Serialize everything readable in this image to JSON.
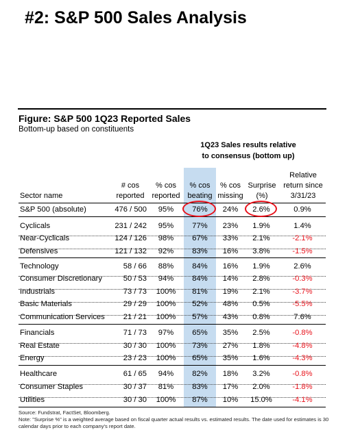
{
  "page_title": "#2: S&P 500 Sales Analysis",
  "figure": {
    "title": "Figure: S&P 500 1Q23 Reported Sales",
    "subtitle": "Bottom-up based on constituents"
  },
  "group_header": {
    "line1": "1Q23 Sales results relative",
    "line2": "to consensus (bottom up)"
  },
  "columns": {
    "sector": "Sector name",
    "cos_1": "# cos",
    "cos_2": "reported",
    "pctrep_1": "% cos",
    "pctrep_2": "reported",
    "beat_1": "% cos",
    "beat_2": "beating",
    "miss_1": "% cos",
    "miss_2": "missing",
    "surp_1": "Surprise",
    "surp_2": "(%)",
    "rel_1": "Relative",
    "rel_2": "return since",
    "rel_3": "3/31/23"
  },
  "rows": [
    {
      "name": "S&P 500 (absolute)",
      "cos": "476 / 500",
      "pctrep": "95%",
      "beat": "76%",
      "miss": "24%",
      "surp": "2.6%",
      "rel": "0.9%",
      "neg": false
    },
    {
      "name": "Cyclicals",
      "cos": "231 / 242",
      "pctrep": "95%",
      "beat": "77%",
      "miss": "23%",
      "surp": "1.9%",
      "rel": "1.4%",
      "neg": false
    },
    {
      "name": "Near-Cyclicals",
      "cos": "124 / 126",
      "pctrep": "98%",
      "beat": "67%",
      "miss": "33%",
      "surp": "2.1%",
      "rel": "-2.1%",
      "neg": true
    },
    {
      "name": "Defensives",
      "cos": "121 / 132",
      "pctrep": "92%",
      "beat": "83%",
      "miss": "16%",
      "surp": "3.8%",
      "rel": "-1.5%",
      "neg": true
    },
    {
      "name": "Technology",
      "cos": "58 / 66",
      "pctrep": "88%",
      "beat": "84%",
      "miss": "16%",
      "surp": "1.9%",
      "rel": "2.6%",
      "neg": false
    },
    {
      "name": "Consumer Discretionary",
      "cos": "50 / 53",
      "pctrep": "94%",
      "beat": "84%",
      "miss": "14%",
      "surp": "2.8%",
      "rel": "-0.3%",
      "neg": true
    },
    {
      "name": "Industrials",
      "cos": "73 / 73",
      "pctrep": "100%",
      "beat": "81%",
      "miss": "19%",
      "surp": "2.1%",
      "rel": "-3.7%",
      "neg": true
    },
    {
      "name": "Basic Materials",
      "cos": "29 / 29",
      "pctrep": "100%",
      "beat": "52%",
      "miss": "48%",
      "surp": "0.5%",
      "rel": "-5.5%",
      "neg": true
    },
    {
      "name": "Communication Services",
      "cos": "21 / 21",
      "pctrep": "100%",
      "beat": "57%",
      "miss": "43%",
      "surp": "0.8%",
      "rel": "7.6%",
      "neg": false
    },
    {
      "name": "Financials",
      "cos": "71 / 73",
      "pctrep": "97%",
      "beat": "65%",
      "miss": "35%",
      "surp": "2.5%",
      "rel": "-0.8%",
      "neg": true
    },
    {
      "name": "Real Estate",
      "cos": "30 / 30",
      "pctrep": "100%",
      "beat": "73%",
      "miss": "27%",
      "surp": "1.8%",
      "rel": "-4.8%",
      "neg": true
    },
    {
      "name": "Energy",
      "cos": "23 / 23",
      "pctrep": "100%",
      "beat": "65%",
      "miss": "35%",
      "surp": "1.6%",
      "rel": "-4.3%",
      "neg": true
    },
    {
      "name": "Healthcare",
      "cos": "61 / 65",
      "pctrep": "94%",
      "beat": "82%",
      "miss": "18%",
      "surp": "3.2%",
      "rel": "-0.8%",
      "neg": true
    },
    {
      "name": "Consumer Staples",
      "cos": "30 / 37",
      "pctrep": "81%",
      "beat": "83%",
      "miss": "17%",
      "surp": "2.0%",
      "rel": "-1.8%",
      "neg": true
    },
    {
      "name": "Utilities",
      "cos": "30 / 30",
      "pctrep": "100%",
      "beat": "87%",
      "miss": "10%",
      "surp": "15.0%",
      "rel": "-4.1%",
      "neg": true
    }
  ],
  "notes": {
    "source": "Source: Fundstrat, FactSet, Bloomberg.",
    "note": "Note: \"Surprise %\" is a weighted average based on fiscal quarter actual results vs. estimated results.  The date used for estimates is 30 calendar days prior to each company's report date."
  },
  "colors": {
    "highlight_column": "#c6dcf0",
    "negative_text": "#e8121b",
    "oval_outline": "#e8121b"
  }
}
